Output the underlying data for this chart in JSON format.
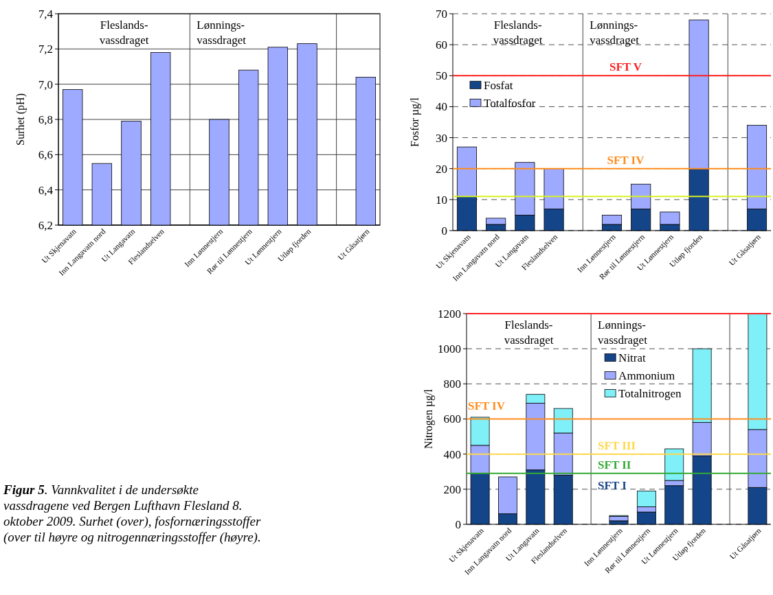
{
  "chart_data": [
    {
      "type": "bar",
      "ylabel": "Surhet (pH)",
      "categories": [
        "Ut Skjenavatn",
        "Inn Langavatn nord",
        "Ut Langavatn",
        "Fleslandselven",
        null,
        "Inn Lønnestjern",
        "Rør til Lønnestjern",
        "Ut Lønnestjern",
        "Utløp fjorden",
        null,
        "Ut Gåsatjørn"
      ],
      "values": [
        6.97,
        6.55,
        6.79,
        7.18,
        null,
        6.8,
        7.08,
        7.21,
        7.23,
        null,
        7.04
      ],
      "color": "#9eaaff",
      "ylim": [
        6.2,
        7.4
      ],
      "yticks": [
        {
          "value": 6.2,
          "label": "6,2"
        },
        {
          "value": 6.4,
          "label": "6,4"
        },
        {
          "value": 6.6,
          "label": "6,6"
        },
        {
          "value": 6.8,
          "label": "6,8"
        },
        {
          "value": 7.0,
          "label": "7,0"
        },
        {
          "value": 7.2,
          "label": "7,2"
        },
        {
          "value": 7.4,
          "label": "7,4"
        }
      ],
      "grid": true,
      "annotations": [
        "Fleslands-\nvassdraget",
        "Lønnings-\nvassdraget"
      ]
    },
    {
      "type": "bar",
      "stacked": true,
      "ylabel": "Fosfor µg/l",
      "categories": [
        "Ut Skjenavatn",
        "Inn Langavatn nord",
        "Ut Langavatn",
        "Fleslandselven",
        null,
        "Inn Lønnestjern",
        "Rør til Lønnestjern",
        "Ut Lønnestjern",
        "Utløp fjorden",
        null,
        "Ut Gåsatjørn"
      ],
      "series": [
        {
          "name": "Fosfat",
          "color": "#154589",
          "values": [
            11,
            2,
            5,
            7,
            null,
            2,
            7,
            2,
            20,
            null,
            7
          ]
        },
        {
          "name": "Totalfosfor",
          "color": "#9eaaff",
          "values": [
            16,
            2,
            17,
            13,
            null,
            3,
            8,
            4,
            48,
            null,
            27
          ]
        }
      ],
      "ylim": [
        0,
        70
      ],
      "yticks": [
        0,
        10,
        20,
        30,
        40,
        50,
        60,
        70
      ],
      "grid": true,
      "legend": "left",
      "annotations": [
        "Fleslands-\nvassdraget",
        "Lønnings-\nvassdraget"
      ],
      "ref_lines": [
        {
          "axis": "y",
          "value": 50,
          "label": "SFT V",
          "color": "#ff2020"
        },
        {
          "axis": "y",
          "value": 20,
          "label": "SFT IV",
          "color": "#ff8c1a"
        },
        {
          "axis": "y",
          "value": 11,
          "color": "#d8f020"
        }
      ]
    },
    {
      "type": "bar",
      "stacked": true,
      "ylabel": "Nitrogen µg/l",
      "categories": [
        "Ut Skjenavatn",
        "Inn Langavatn nord",
        "Ut Langavatn",
        "Fleslandselven",
        null,
        "Inn Lønnestjern",
        "Rør til Lønnestjern",
        "Ut Lønnestjern",
        "Utløp fjorden",
        null,
        "Ut Gåsatjørn"
      ],
      "series": [
        {
          "name": "Nitrat",
          "color": "#154589",
          "values": [
            290,
            60,
            310,
            280,
            null,
            20,
            70,
            220,
            390,
            null,
            210
          ]
        },
        {
          "name": "Ammonium",
          "color": "#9eaaff",
          "values": [
            160,
            210,
            380,
            240,
            null,
            25,
            30,
            30,
            190,
            null,
            330
          ]
        },
        {
          "name": "Totalnitrogen",
          "color": "#80f0f8",
          "values": [
            160,
            0,
            50,
            140,
            null,
            5,
            90,
            180,
            420,
            null,
            660
          ]
        }
      ],
      "ylim": [
        0,
        1200
      ],
      "yticks": [
        0,
        200,
        400,
        600,
        800,
        1000,
        1200
      ],
      "grid": true,
      "legend": "top",
      "annotations": [
        "Fleslands-\nvassdraget",
        "Lønnings-\nvassdraget",
        "SFT I"
      ],
      "ref_lines": [
        {
          "axis": "y",
          "value": 1200,
          "color": "#ff2020"
        },
        {
          "axis": "y",
          "value": 600,
          "label": "SFT IV",
          "color": "#ff8c1a"
        },
        {
          "axis": "y",
          "value": 400,
          "label": "SFT III",
          "color": "#ffd84a"
        },
        {
          "axis": "y",
          "value": 290,
          "label": "SFT II",
          "color": "#33aa33"
        }
      ]
    },
    {
      "type": "other",
      "title": "Figur 5",
      "annotations": [
        ". Vannkvalitet i de undersøkte vassdragene ved Bergen Lufthavn Flesland 8. oktober 2009. Surhet (over), fosfornæringsstoffer (over til høyre og nitrogennæringsstoffer (høyre)."
      ]
    }
  ]
}
